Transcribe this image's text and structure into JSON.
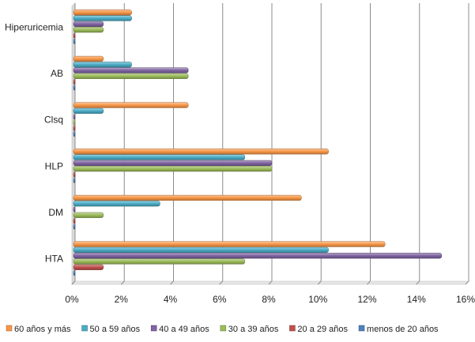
{
  "chart_data": {
    "type": "bar",
    "orientation": "horizontal",
    "categories": [
      "HTA",
      "DM",
      "HLP",
      "Clsq",
      "AB",
      "Hiperuricemia"
    ],
    "series": [
      {
        "name": "menos de 20 años",
        "color": "#4f81bd",
        "values": [
          0,
          0,
          0,
          0,
          0,
          0
        ]
      },
      {
        "name": "20 a 29 años",
        "color": "#c0504d",
        "values": [
          1.15,
          0,
          0,
          0,
          0,
          0
        ]
      },
      {
        "name": "30 a 39 años",
        "color": "#9bbb59",
        "values": [
          6.9,
          1.15,
          8.0,
          0,
          4.6,
          1.15
        ]
      },
      {
        "name": "40 a 49 años",
        "color": "#8064a2",
        "values": [
          14.9,
          0,
          8.0,
          0,
          4.6,
          1.15
        ]
      },
      {
        "name": "50 a 59 años",
        "color": "#4bacc6",
        "values": [
          10.3,
          3.45,
          6.9,
          1.15,
          2.3,
          2.3
        ]
      },
      {
        "name": "60 años y más",
        "color": "#f79646",
        "values": [
          12.6,
          9.2,
          10.3,
          4.6,
          1.15,
          2.3
        ]
      }
    ],
    "legend_order": [
      "60 años y más",
      "50 a 59 años",
      "40 a 49 años",
      "30 a 39 años",
      "20 a 29 años",
      "menos de 20 años"
    ],
    "x_ticks": [
      "0%",
      "2%",
      "4%",
      "6%",
      "8%",
      "10%",
      "12%",
      "14%",
      "16%"
    ],
    "xlim": [
      0,
      16
    ],
    "grid": "vertical",
    "legend_position": "bottom",
    "title": "",
    "xlabel": "",
    "ylabel": ""
  }
}
